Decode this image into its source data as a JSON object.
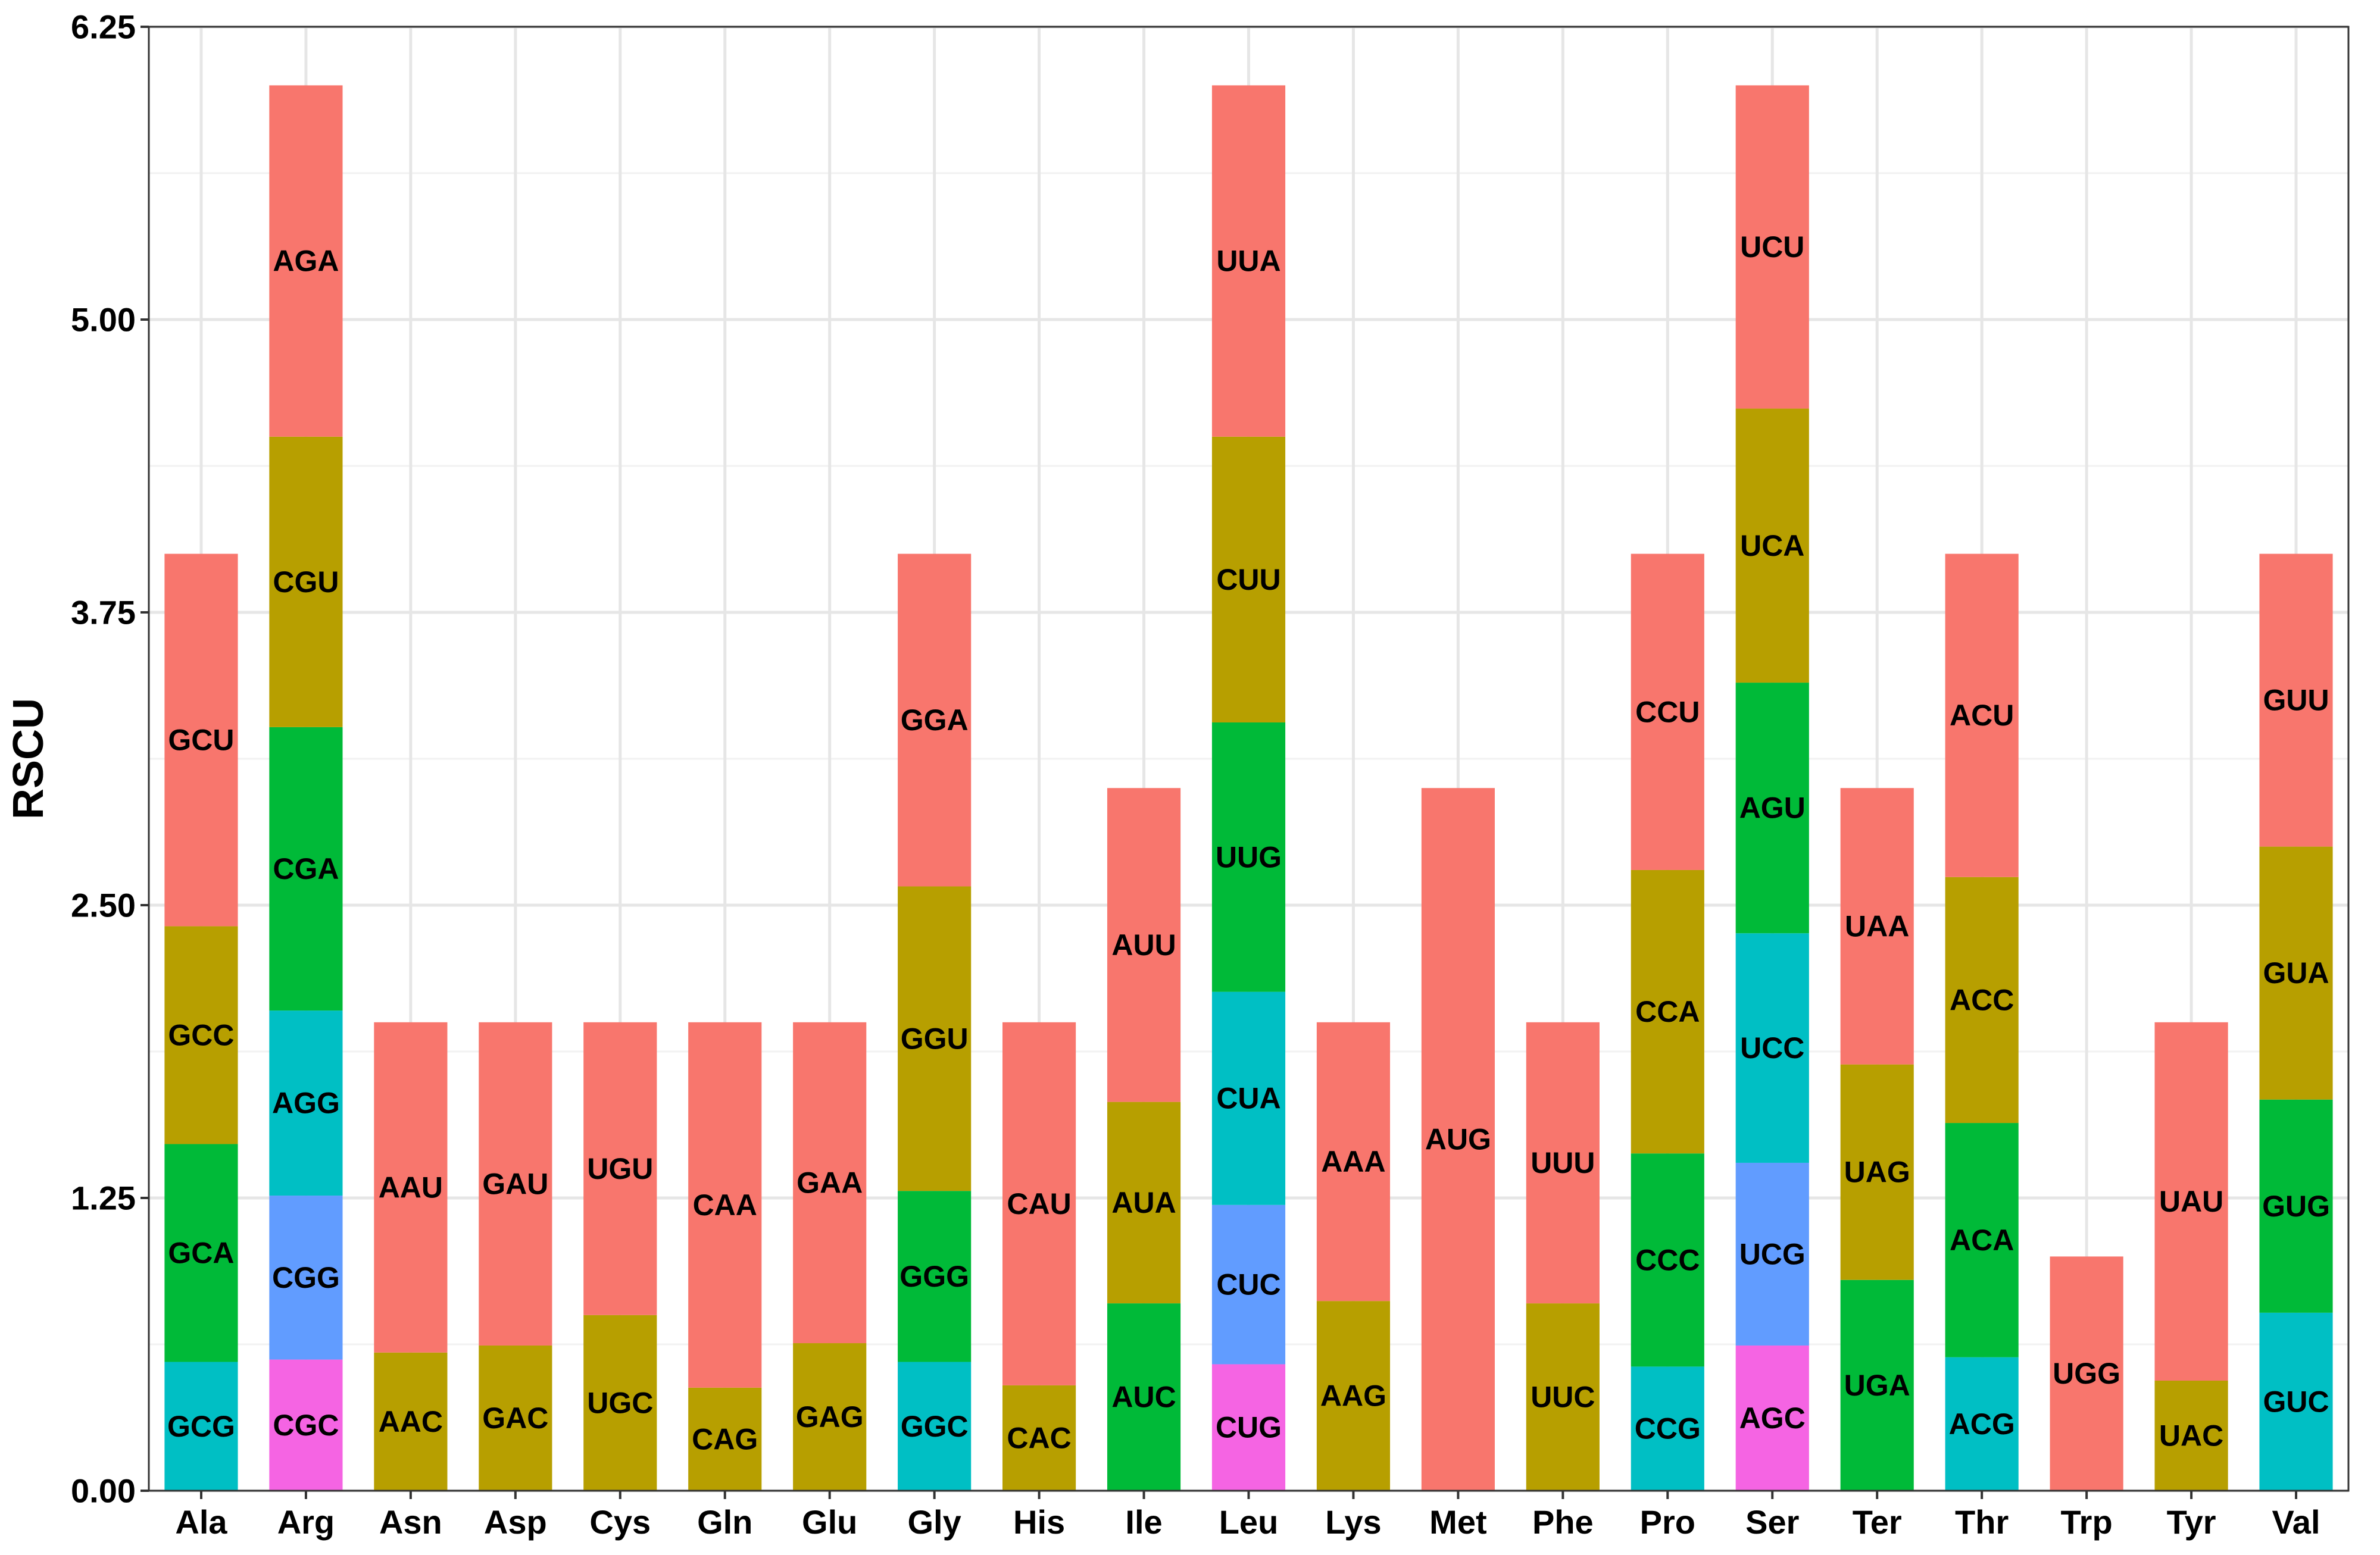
{
  "chart_data": {
    "type": "bar",
    "stacked": true,
    "ylabel": "RSCU",
    "xlabel": "",
    "ylim": [
      0,
      6.25
    ],
    "yticks": [
      "0.00",
      "1.25",
      "2.50",
      "3.75",
      "5.00",
      "6.25"
    ],
    "grid": true,
    "colors": {
      "salmon": "#F8766D",
      "olive": "#B79F00",
      "green": "#00BA38",
      "cyan": "#00BFC4",
      "blue": "#619CFF",
      "magenta": "#F564E3"
    },
    "categories": [
      "Ala",
      "Arg",
      "Asn",
      "Asp",
      "Cys",
      "Gln",
      "Glu",
      "Gly",
      "His",
      "Ile",
      "Leu",
      "Lys",
      "Met",
      "Phe",
      "Pro",
      "Ser",
      "Ter",
      "Thr",
      "Trp",
      "Tyr",
      "Val"
    ],
    "bars": [
      {
        "aa": "Ala",
        "segments": [
          {
            "codon": "GCG",
            "value": 0.55,
            "color": "cyan"
          },
          {
            "codon": "GCA",
            "value": 0.93,
            "color": "green"
          },
          {
            "codon": "GCC",
            "value": 0.93,
            "color": "olive"
          },
          {
            "codon": "GCU",
            "value": 1.59,
            "color": "salmon"
          }
        ]
      },
      {
        "aa": "Arg",
        "segments": [
          {
            "codon": "CGC",
            "value": 0.56,
            "color": "magenta"
          },
          {
            "codon": "CGG",
            "value": 0.7,
            "color": "blue"
          },
          {
            "codon": "AGG",
            "value": 0.79,
            "color": "cyan"
          },
          {
            "codon": "CGA",
            "value": 1.21,
            "color": "green"
          },
          {
            "codon": "CGU",
            "value": 1.24,
            "color": "olive"
          },
          {
            "codon": "AGA",
            "value": 1.5,
            "color": "salmon"
          }
        ]
      },
      {
        "aa": "Asn",
        "segments": [
          {
            "codon": "AAC",
            "value": 0.59,
            "color": "olive"
          },
          {
            "codon": "AAU",
            "value": 1.41,
            "color": "salmon"
          }
        ]
      },
      {
        "aa": "Asp",
        "segments": [
          {
            "codon": "GAC",
            "value": 0.62,
            "color": "olive"
          },
          {
            "codon": "GAU",
            "value": 1.38,
            "color": "salmon"
          }
        ]
      },
      {
        "aa": "Cys",
        "segments": [
          {
            "codon": "UGC",
            "value": 0.75,
            "color": "olive"
          },
          {
            "codon": "UGU",
            "value": 1.25,
            "color": "salmon"
          }
        ]
      },
      {
        "aa": "Gln",
        "segments": [
          {
            "codon": "CAG",
            "value": 0.44,
            "color": "olive"
          },
          {
            "codon": "CAA",
            "value": 1.56,
            "color": "salmon"
          }
        ]
      },
      {
        "aa": "Glu",
        "segments": [
          {
            "codon": "GAG",
            "value": 0.63,
            "color": "olive"
          },
          {
            "codon": "GAA",
            "value": 1.37,
            "color": "salmon"
          }
        ]
      },
      {
        "aa": "Gly",
        "segments": [
          {
            "codon": "GGC",
            "value": 0.55,
            "color": "cyan"
          },
          {
            "codon": "GGG",
            "value": 0.73,
            "color": "green"
          },
          {
            "codon": "GGU",
            "value": 1.3,
            "color": "olive"
          },
          {
            "codon": "GGA",
            "value": 1.42,
            "color": "salmon"
          }
        ]
      },
      {
        "aa": "His",
        "segments": [
          {
            "codon": "CAC",
            "value": 0.45,
            "color": "olive"
          },
          {
            "codon": "CAU",
            "value": 1.55,
            "color": "salmon"
          }
        ]
      },
      {
        "aa": "Ile",
        "segments": [
          {
            "codon": "AUC",
            "value": 0.8,
            "color": "green"
          },
          {
            "codon": "AUA",
            "value": 0.86,
            "color": "olive"
          },
          {
            "codon": "AUU",
            "value": 1.34,
            "color": "salmon"
          }
        ]
      },
      {
        "aa": "Leu",
        "segments": [
          {
            "codon": "CUG",
            "value": 0.54,
            "color": "magenta"
          },
          {
            "codon": "CUC",
            "value": 0.68,
            "color": "blue"
          },
          {
            "codon": "CUA",
            "value": 0.91,
            "color": "cyan"
          },
          {
            "codon": "UUG",
            "value": 1.15,
            "color": "green"
          },
          {
            "codon": "CUU",
            "value": 1.22,
            "color": "olive"
          },
          {
            "codon": "UUA",
            "value": 1.5,
            "color": "salmon"
          }
        ]
      },
      {
        "aa": "Lys",
        "segments": [
          {
            "codon": "AAG",
            "value": 0.81,
            "color": "olive"
          },
          {
            "codon": "AAA",
            "value": 1.19,
            "color": "salmon"
          }
        ]
      },
      {
        "aa": "Met",
        "segments": [
          {
            "codon": "AUG",
            "value": 3.0,
            "color": "salmon"
          }
        ]
      },
      {
        "aa": "Phe",
        "segments": [
          {
            "codon": "UUC",
            "value": 0.8,
            "color": "olive"
          },
          {
            "codon": "UUU",
            "value": 1.2,
            "color": "salmon"
          }
        ]
      },
      {
        "aa": "Pro",
        "segments": [
          {
            "codon": "CCG",
            "value": 0.53,
            "color": "cyan"
          },
          {
            "codon": "CCC",
            "value": 0.91,
            "color": "green"
          },
          {
            "codon": "CCA",
            "value": 1.21,
            "color": "olive"
          },
          {
            "codon": "CCU",
            "value": 1.35,
            "color": "salmon"
          }
        ]
      },
      {
        "aa": "Ser",
        "segments": [
          {
            "codon": "AGC",
            "value": 0.62,
            "color": "magenta"
          },
          {
            "codon": "UCG",
            "value": 0.78,
            "color": "blue"
          },
          {
            "codon": "UCC",
            "value": 0.98,
            "color": "cyan"
          },
          {
            "codon": "AGU",
            "value": 1.07,
            "color": "green"
          },
          {
            "codon": "UCA",
            "value": 1.17,
            "color": "olive"
          },
          {
            "codon": "UCU",
            "value": 1.38,
            "color": "salmon"
          }
        ]
      },
      {
        "aa": "Ter",
        "segments": [
          {
            "codon": "UGA",
            "value": 0.9,
            "color": "green"
          },
          {
            "codon": "UAG",
            "value": 0.92,
            "color": "olive"
          },
          {
            "codon": "UAA",
            "value": 1.18,
            "color": "salmon"
          }
        ]
      },
      {
        "aa": "Thr",
        "segments": [
          {
            "codon": "ACG",
            "value": 0.57,
            "color": "cyan"
          },
          {
            "codon": "ACA",
            "value": 1.0,
            "color": "green"
          },
          {
            "codon": "ACC",
            "value": 1.05,
            "color": "olive"
          },
          {
            "codon": "ACU",
            "value": 1.38,
            "color": "salmon"
          }
        ]
      },
      {
        "aa": "Trp",
        "segments": [
          {
            "codon": "UGG",
            "value": 1.0,
            "color": "salmon"
          }
        ]
      },
      {
        "aa": "Tyr",
        "segments": [
          {
            "codon": "UAC",
            "value": 0.47,
            "color": "olive"
          },
          {
            "codon": "UAU",
            "value": 1.53,
            "color": "salmon"
          }
        ]
      },
      {
        "aa": "Val",
        "segments": [
          {
            "codon": "GUC",
            "value": 0.76,
            "color": "cyan"
          },
          {
            "codon": "GUG",
            "value": 0.91,
            "color": "green"
          },
          {
            "codon": "GUA",
            "value": 1.08,
            "color": "olive"
          },
          {
            "codon": "GUU",
            "value": 1.25,
            "color": "salmon"
          }
        ]
      }
    ]
  }
}
